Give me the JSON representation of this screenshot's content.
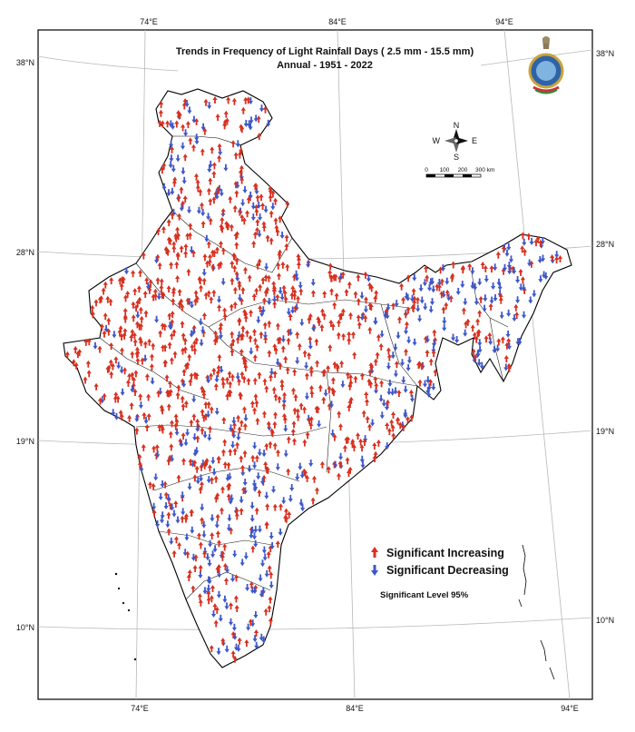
{
  "title": {
    "line1": "Trends in Frequency of Light Rainfall Days ( 2.5 mm - 15.5 mm)",
    "line2": "Annual - 1951 - 2022"
  },
  "graticule": {
    "top_labels": [
      "74°E",
      "84°E",
      "94°E"
    ],
    "bottom_labels": [
      "74°E",
      "84°E",
      "94°E"
    ],
    "left_labels": [
      "38°N",
      "28°N",
      "19°N",
      "10°N"
    ],
    "right_labels": [
      "38°N",
      "28°N",
      "19°N",
      "10°N"
    ]
  },
  "compass": {
    "n": "N",
    "s": "S",
    "e": "E",
    "w": "W"
  },
  "scale_bar": {
    "labels": [
      "0",
      "100",
      "200",
      "300 km"
    ]
  },
  "legend": {
    "increasing": "Significant Increasing",
    "decreasing": "Significant Decreasing",
    "note": "Significant Level 95%"
  },
  "colors": {
    "increasing": "#d7301f",
    "decreasing": "#3d57c9",
    "boundary": "#000000",
    "graticule": "#b8b8b8"
  },
  "icons": {
    "emblem": "government-emblem-icon"
  }
}
